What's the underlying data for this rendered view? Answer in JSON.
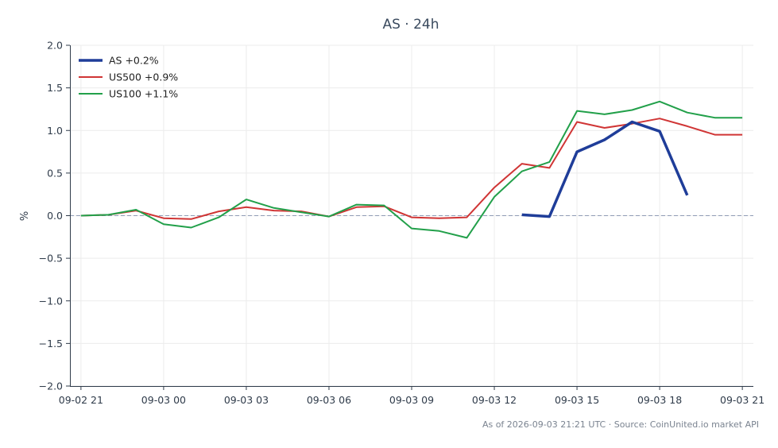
{
  "chart_data": {
    "type": "line",
    "title": "AS · 24h",
    "xlabel": "",
    "ylabel": "%",
    "ylim": [
      -2.0,
      2.0
    ],
    "xlim": [
      "09-02 20:36",
      "09-03 21:24"
    ],
    "y_ticks": [
      "2.0",
      "1.5",
      "1.0",
      "0.5",
      "0.0",
      "−0.5",
      "−1.0",
      "−1.5",
      "−2.0"
    ],
    "x_ticks": [
      "09-02 21",
      "09-03 00",
      "09-03 03",
      "09-03 06",
      "09-03 09",
      "09-03 12",
      "09-03 15",
      "09-03 18",
      "09-03 21"
    ],
    "grid": true,
    "zero_line": true,
    "legend_position": "top-left",
    "footer": "As of 2026-09-03 21:21 UTC · Source: CoinUnited.io market API",
    "series": [
      {
        "name": "AS +0.2%",
        "color": "#1f3d99",
        "x": [
          "09-03 13",
          "09-03 14",
          "09-03 15",
          "09-03 16",
          "09-03 17",
          "09-03 18",
          "09-03 19"
        ],
        "values": [
          0.01,
          -0.01,
          0.75,
          0.89,
          1.1,
          0.99,
          0.24
        ]
      },
      {
        "name": "US500 +0.9%",
        "color": "#d03535",
        "x": [
          "09-02 21",
          "09-02 22",
          "09-02 23",
          "09-03 00",
          "09-03 01",
          "09-03 02",
          "09-03 03",
          "09-03 04",
          "09-03 05",
          "09-03 06",
          "09-03 07",
          "09-03 08",
          "09-03 09",
          "09-03 10",
          "09-03 11",
          "09-03 12",
          "09-03 13",
          "09-03 14",
          "09-03 15",
          "09-03 16",
          "09-03 17",
          "09-03 18",
          "09-03 19",
          "09-03 20",
          "09-03 21"
        ],
        "values": [
          0.0,
          0.01,
          0.06,
          -0.03,
          -0.04,
          0.05,
          0.1,
          0.06,
          0.05,
          -0.01,
          0.1,
          0.11,
          -0.02,
          -0.03,
          -0.02,
          0.33,
          0.61,
          0.56,
          1.1,
          1.03,
          1.08,
          1.14,
          1.05,
          0.95,
          0.95
        ]
      },
      {
        "name": "US100 +1.1%",
        "color": "#22a04a",
        "x": [
          "09-02 21",
          "09-02 22",
          "09-02 23",
          "09-03 00",
          "09-03 01",
          "09-03 02",
          "09-03 03",
          "09-03 04",
          "09-03 05",
          "09-03 06",
          "09-03 07",
          "09-03 08",
          "09-03 09",
          "09-03 10",
          "09-03 11",
          "09-03 12",
          "09-03 13",
          "09-03 14",
          "09-03 15",
          "09-03 16",
          "09-03 17",
          "09-03 18",
          "09-03 19",
          "09-03 20",
          "09-03 21"
        ],
        "values": [
          0.0,
          0.01,
          0.07,
          -0.1,
          -0.14,
          -0.02,
          0.19,
          0.09,
          0.04,
          -0.01,
          0.13,
          0.12,
          -0.15,
          -0.18,
          -0.26,
          0.22,
          0.52,
          0.63,
          1.23,
          1.19,
          1.24,
          1.34,
          1.21,
          1.15,
          1.15
        ]
      }
    ]
  }
}
